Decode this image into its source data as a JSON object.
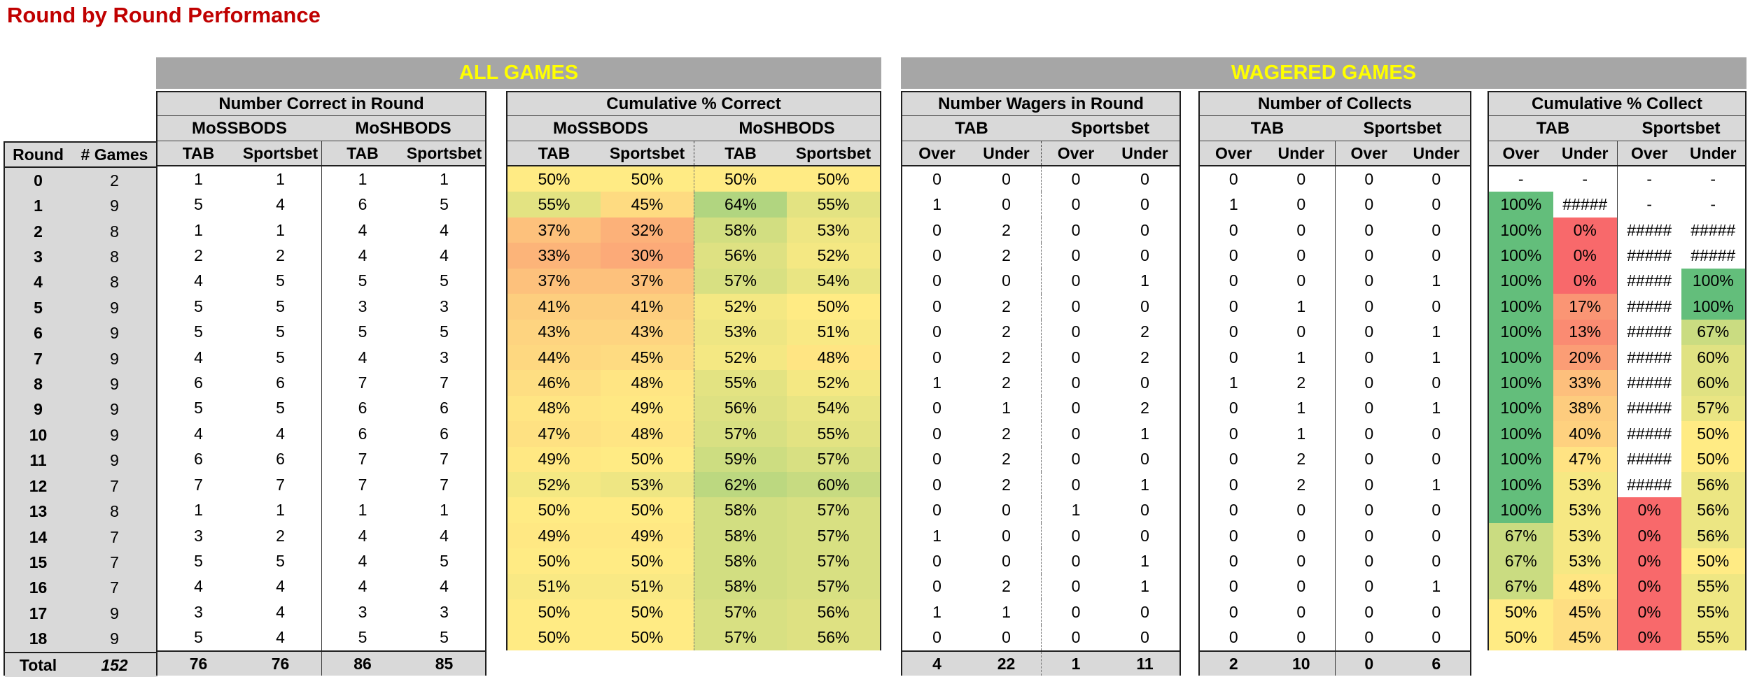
{
  "title": "Round by Round Performance",
  "bands": {
    "all_games": "ALL GAMES",
    "wagered_games": "WAGERED GAMES"
  },
  "colors": {
    "title_text": "#C00000",
    "band_bg": "#A6A6A6",
    "band_text": "#FFFF00",
    "header_bg": "#D9D9D9",
    "total_row_bg": "#D9D9D9",
    "scale_red": "#F8696B",
    "scale_yellow": "#FFEB84",
    "scale_green": "#63BE7B"
  },
  "scales": {
    "cum_correct": {
      "min": 10,
      "mid": 50,
      "max": 78
    },
    "cum_collect": {
      "min": 0,
      "mid": 50,
      "max": 100
    }
  },
  "tables": {
    "round_games": {
      "headers": [
        "Round",
        "# Games"
      ]
    },
    "number_correct": {
      "title": "Number Correct in Round",
      "groups": [
        "MoSSBODS",
        "MoSHBODS"
      ],
      "subheaders": [
        "TAB",
        "Sportsbet",
        "TAB",
        "Sportsbet"
      ]
    },
    "cum_correct": {
      "title": "Cumulative % Correct",
      "groups": [
        "MoSSBODS",
        "MoSHBODS"
      ],
      "subheaders": [
        "TAB",
        "Sportsbet",
        "TAB",
        "Sportsbet"
      ]
    },
    "wagers": {
      "title": "Number Wagers in Round",
      "groups": [
        "TAB",
        "Sportsbet"
      ],
      "subheaders": [
        "Over",
        "Under",
        "Over",
        "Under"
      ]
    },
    "collects": {
      "title": "Number of Collects",
      "groups": [
        "TAB",
        "Sportsbet"
      ],
      "subheaders": [
        "Over",
        "Under",
        "Over",
        "Under"
      ]
    },
    "cum_collect": {
      "title": "Cumulative % Collect",
      "groups": [
        "TAB",
        "Sportsbet"
      ],
      "subheaders": [
        "Over",
        "Under",
        "Over",
        "Under"
      ]
    }
  },
  "chart_data": {
    "type": "table",
    "title": "Round by Round Performance",
    "rows": [
      {
        "round": "0",
        "games": "2",
        "correct": [
          "1",
          "1",
          "1",
          "1"
        ],
        "cum_correct": [
          50,
          50,
          50,
          50
        ],
        "wagers": [
          "0",
          "0",
          "0",
          "0"
        ],
        "collects": [
          "0",
          "0",
          "0",
          "0"
        ],
        "cum_collect": [
          "-",
          "-",
          "-",
          "-"
        ]
      },
      {
        "round": "1",
        "games": "9",
        "correct": [
          "5",
          "4",
          "6",
          "5"
        ],
        "cum_correct": [
          55,
          45,
          64,
          55
        ],
        "wagers": [
          "1",
          "0",
          "0",
          "0"
        ],
        "collects": [
          "1",
          "0",
          "0",
          "0"
        ],
        "cum_collect": [
          100,
          "#####",
          "-",
          "-"
        ]
      },
      {
        "round": "2",
        "games": "8",
        "correct": [
          "1",
          "1",
          "4",
          "4"
        ],
        "cum_correct": [
          37,
          32,
          58,
          53
        ],
        "wagers": [
          "0",
          "2",
          "0",
          "0"
        ],
        "collects": [
          "0",
          "0",
          "0",
          "0"
        ],
        "cum_collect": [
          100,
          0,
          "#####",
          "#####"
        ]
      },
      {
        "round": "3",
        "games": "8",
        "correct": [
          "2",
          "2",
          "4",
          "4"
        ],
        "cum_correct": [
          33,
          30,
          56,
          52
        ],
        "wagers": [
          "0",
          "2",
          "0",
          "0"
        ],
        "collects": [
          "0",
          "0",
          "0",
          "0"
        ],
        "cum_collect": [
          100,
          0,
          "#####",
          "#####"
        ]
      },
      {
        "round": "4",
        "games": "8",
        "correct": [
          "4",
          "5",
          "5",
          "5"
        ],
        "cum_correct": [
          37,
          37,
          57,
          54
        ],
        "wagers": [
          "0",
          "0",
          "0",
          "1"
        ],
        "collects": [
          "0",
          "0",
          "0",
          "1"
        ],
        "cum_collect": [
          100,
          0,
          "#####",
          100
        ]
      },
      {
        "round": "5",
        "games": "9",
        "correct": [
          "5",
          "5",
          "3",
          "3"
        ],
        "cum_correct": [
          41,
          41,
          52,
          50
        ],
        "wagers": [
          "0",
          "2",
          "0",
          "0"
        ],
        "collects": [
          "0",
          "1",
          "0",
          "0"
        ],
        "cum_collect": [
          100,
          17,
          "#####",
          100
        ]
      },
      {
        "round": "6",
        "games": "9",
        "correct": [
          "5",
          "5",
          "5",
          "5"
        ],
        "cum_correct": [
          43,
          43,
          53,
          51
        ],
        "wagers": [
          "0",
          "2",
          "0",
          "2"
        ],
        "collects": [
          "0",
          "0",
          "0",
          "1"
        ],
        "cum_collect": [
          100,
          13,
          "#####",
          67
        ]
      },
      {
        "round": "7",
        "games": "9",
        "correct": [
          "4",
          "5",
          "4",
          "3"
        ],
        "cum_correct": [
          44,
          45,
          52,
          48
        ],
        "wagers": [
          "0",
          "2",
          "0",
          "2"
        ],
        "collects": [
          "0",
          "1",
          "0",
          "1"
        ],
        "cum_collect": [
          100,
          20,
          "#####",
          60
        ]
      },
      {
        "round": "8",
        "games": "9",
        "correct": [
          "6",
          "6",
          "7",
          "7"
        ],
        "cum_correct": [
          46,
          48,
          55,
          52
        ],
        "wagers": [
          "1",
          "2",
          "0",
          "0"
        ],
        "collects": [
          "1",
          "2",
          "0",
          "0"
        ],
        "cum_collect": [
          100,
          33,
          "#####",
          60
        ]
      },
      {
        "round": "9",
        "games": "9",
        "correct": [
          "5",
          "5",
          "6",
          "6"
        ],
        "cum_correct": [
          48,
          49,
          56,
          54
        ],
        "wagers": [
          "0",
          "1",
          "0",
          "2"
        ],
        "collects": [
          "0",
          "1",
          "0",
          "1"
        ],
        "cum_collect": [
          100,
          38,
          "#####",
          57
        ]
      },
      {
        "round": "10",
        "games": "9",
        "correct": [
          "4",
          "4",
          "6",
          "6"
        ],
        "cum_correct": [
          47,
          48,
          57,
          55
        ],
        "wagers": [
          "0",
          "2",
          "0",
          "1"
        ],
        "collects": [
          "0",
          "1",
          "0",
          "0"
        ],
        "cum_collect": [
          100,
          40,
          "#####",
          50
        ]
      },
      {
        "round": "11",
        "games": "9",
        "correct": [
          "6",
          "6",
          "7",
          "7"
        ],
        "cum_correct": [
          49,
          50,
          59,
          57
        ],
        "wagers": [
          "0",
          "2",
          "0",
          "0"
        ],
        "collects": [
          "0",
          "2",
          "0",
          "0"
        ],
        "cum_collect": [
          100,
          47,
          "#####",
          50
        ]
      },
      {
        "round": "12",
        "games": "7",
        "correct": [
          "7",
          "7",
          "7",
          "7"
        ],
        "cum_correct": [
          52,
          53,
          62,
          60
        ],
        "wagers": [
          "0",
          "2",
          "0",
          "1"
        ],
        "collects": [
          "0",
          "2",
          "0",
          "1"
        ],
        "cum_collect": [
          100,
          53,
          "#####",
          56
        ]
      },
      {
        "round": "13",
        "games": "8",
        "correct": [
          "1",
          "1",
          "1",
          "1"
        ],
        "cum_correct": [
          50,
          50,
          58,
          57
        ],
        "wagers": [
          "0",
          "0",
          "1",
          "0"
        ],
        "collects": [
          "0",
          "0",
          "0",
          "0"
        ],
        "cum_collect": [
          100,
          53,
          0,
          56
        ]
      },
      {
        "round": "14",
        "games": "7",
        "correct": [
          "3",
          "2",
          "4",
          "4"
        ],
        "cum_correct": [
          49,
          49,
          58,
          57
        ],
        "wagers": [
          "1",
          "0",
          "0",
          "0"
        ],
        "collects": [
          "0",
          "0",
          "0",
          "0"
        ],
        "cum_collect": [
          67,
          53,
          0,
          56
        ]
      },
      {
        "round": "15",
        "games": "7",
        "correct": [
          "5",
          "5",
          "4",
          "5"
        ],
        "cum_correct": [
          50,
          50,
          58,
          57
        ],
        "wagers": [
          "0",
          "0",
          "0",
          "1"
        ],
        "collects": [
          "0",
          "0",
          "0",
          "0"
        ],
        "cum_collect": [
          67,
          53,
          0,
          50
        ]
      },
      {
        "round": "16",
        "games": "7",
        "correct": [
          "4",
          "4",
          "4",
          "4"
        ],
        "cum_correct": [
          51,
          51,
          58,
          57
        ],
        "wagers": [
          "0",
          "2",
          "0",
          "1"
        ],
        "collects": [
          "0",
          "0",
          "0",
          "1"
        ],
        "cum_collect": [
          67,
          48,
          0,
          55
        ]
      },
      {
        "round": "17",
        "games": "9",
        "correct": [
          "3",
          "4",
          "3",
          "3"
        ],
        "cum_correct": [
          50,
          50,
          57,
          56
        ],
        "wagers": [
          "1",
          "1",
          "0",
          "0"
        ],
        "collects": [
          "0",
          "0",
          "0",
          "0"
        ],
        "cum_collect": [
          50,
          45,
          0,
          55
        ]
      },
      {
        "round": "18",
        "games": "9",
        "correct": [
          "5",
          "4",
          "5",
          "5"
        ],
        "cum_correct": [
          50,
          50,
          57,
          56
        ],
        "wagers": [
          "0",
          "0",
          "0",
          "0"
        ],
        "collects": [
          "0",
          "0",
          "0",
          "0"
        ],
        "cum_collect": [
          50,
          45,
          0,
          55
        ]
      }
    ],
    "totals": {
      "label": "Total",
      "games": "152",
      "correct": [
        "76",
        "76",
        "86",
        "85"
      ],
      "wagers": [
        "4",
        "22",
        "1",
        "11"
      ],
      "collects": [
        "2",
        "10",
        "0",
        "6"
      ]
    }
  }
}
